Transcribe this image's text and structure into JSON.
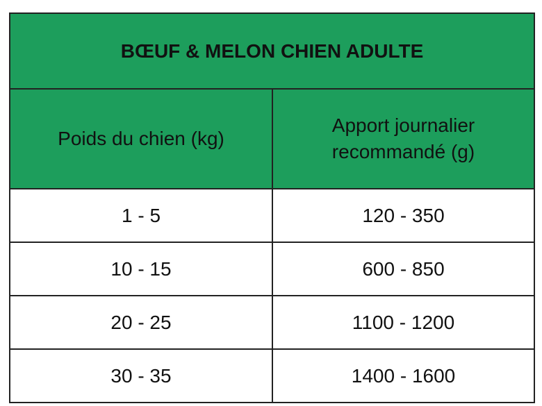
{
  "title": "BŒUF & MELON CHIEN ADULTE",
  "columns": [
    "Poids du chien (kg)",
    "Apport journalier recommandé (g)"
  ],
  "rows": [
    [
      "1 - 5",
      "120 - 350"
    ],
    [
      "10 - 15",
      "600 - 850"
    ],
    [
      "20 - 25",
      "1100 - 1200"
    ],
    [
      "30 - 35",
      "1400 - 1600"
    ]
  ],
  "colors": {
    "header_bg": "#1d9e5c",
    "border": "#222222"
  }
}
